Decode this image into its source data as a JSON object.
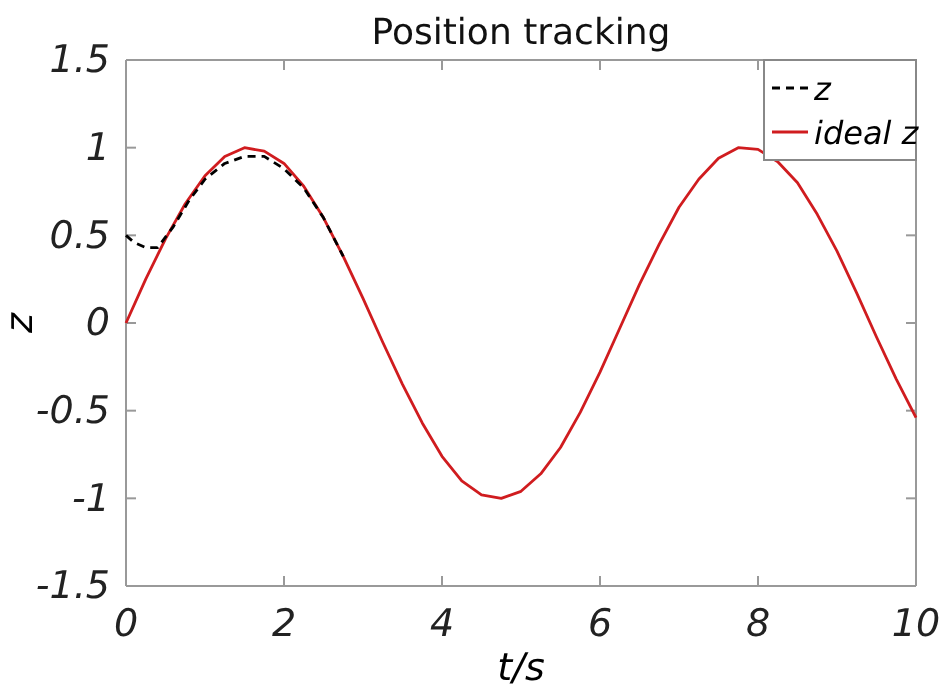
{
  "chart_data": {
    "type": "line",
    "title": "Position tracking",
    "xlabel": "t/s",
    "ylabel": "z",
    "xlim": [
      0,
      10
    ],
    "ylim": [
      -1.5,
      1.5
    ],
    "xticks": [
      0,
      2,
      4,
      6,
      8,
      10
    ],
    "yticks": [
      -1.5,
      -1,
      -0.5,
      0,
      0.5,
      1,
      1.5
    ],
    "grid": false,
    "legend": "top right",
    "series": [
      {
        "name": "ideal z",
        "color": "#d01c1f",
        "line_style": "solid",
        "x": [
          0,
          0.25,
          0.5,
          0.75,
          1,
          1.25,
          1.5,
          1.75,
          2,
          2.25,
          2.5,
          2.75,
          3,
          3.25,
          3.5,
          3.75,
          4,
          4.25,
          4.5,
          4.75,
          5,
          5.25,
          5.5,
          5.75,
          6,
          6.25,
          6.5,
          6.75,
          7,
          7.25,
          7.5,
          7.75,
          8,
          8.25,
          8.5,
          8.75,
          9,
          9.25,
          9.5,
          9.75,
          10
        ],
        "values": [
          0,
          0.25,
          0.48,
          0.68,
          0.84,
          0.95,
          1,
          0.98,
          0.91,
          0.78,
          0.6,
          0.38,
          0.14,
          -0.11,
          -0.35,
          -0.57,
          -0.76,
          -0.9,
          -0.98,
          -1,
          -0.96,
          -0.86,
          -0.71,
          -0.51,
          -0.28,
          -0.03,
          0.22,
          0.45,
          0.66,
          0.82,
          0.94,
          1,
          0.99,
          0.92,
          0.8,
          0.62,
          0.41,
          0.17,
          -0.08,
          -0.32,
          -0.54
        ]
      },
      {
        "name": "z",
        "color": "#000000",
        "line_style": "dashed",
        "x": [
          0,
          0.1,
          0.25,
          0.4,
          0.6,
          0.8,
          1,
          1.25,
          1.5,
          1.75,
          2,
          2.25,
          2.5,
          2.75
        ],
        "values": [
          0.5,
          0.46,
          0.43,
          0.43,
          0.55,
          0.7,
          0.82,
          0.91,
          0.95,
          0.95,
          0.88,
          0.77,
          0.6,
          0.38
        ]
      }
    ]
  }
}
